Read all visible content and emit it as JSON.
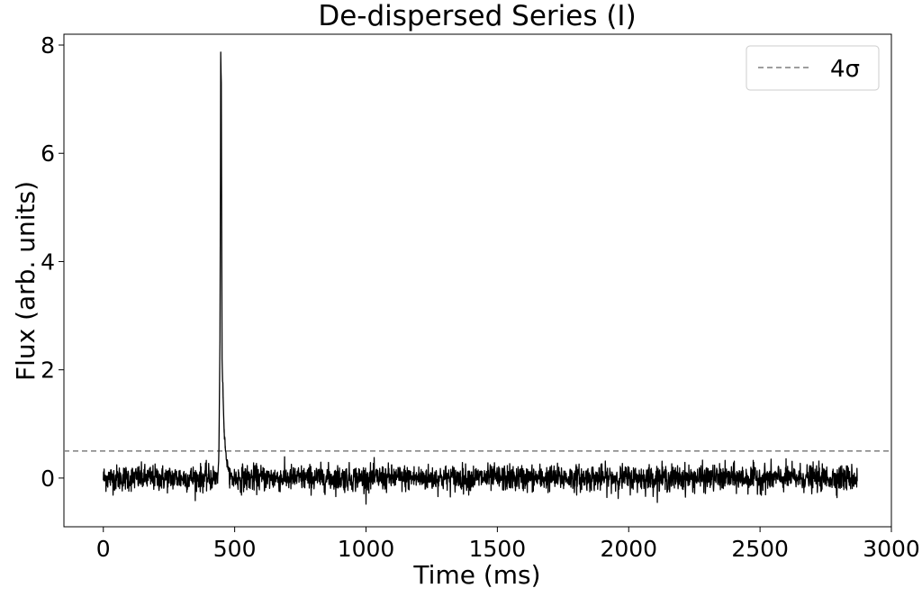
{
  "chart_data": {
    "type": "line",
    "title": "De-dispersed Series (I)",
    "xlabel": "Time (ms)",
    "ylabel": "Flux (arb. units)",
    "xlim": [
      -150,
      3000
    ],
    "ylim": [
      -0.9,
      8.2
    ],
    "x_ticks": [
      0,
      500,
      1000,
      1500,
      2000,
      2500,
      3000
    ],
    "y_ticks": [
      0,
      2,
      4,
      6,
      8
    ],
    "x_tick_labels": [
      "0",
      "500",
      "1000",
      "1500",
      "2000",
      "2500",
      "3000"
    ],
    "y_tick_labels": [
      "0",
      "2",
      "4",
      "6",
      "8"
    ],
    "grid": false,
    "legend_position": "top-right",
    "series": [
      {
        "kind": "noise_time_series",
        "color": "#000000",
        "x_range": [
          0,
          2870
        ],
        "baseline": 0.0,
        "noise_sigma": 0.12,
        "pulse": {
          "x": [
            436,
            440,
            444,
            446,
            447,
            449,
            452,
            456,
            460,
            464,
            470,
            480
          ],
          "y": [
            0.05,
            0.5,
            2.5,
            5.5,
            7.83,
            7.3,
            2.2,
            1.5,
            0.9,
            0.6,
            0.3,
            0.05
          ]
        }
      }
    ],
    "reference_lines": [
      {
        "name": "4σ",
        "y": 0.5,
        "style": "dashed",
        "color": "#7f7f7f"
      }
    ]
  }
}
